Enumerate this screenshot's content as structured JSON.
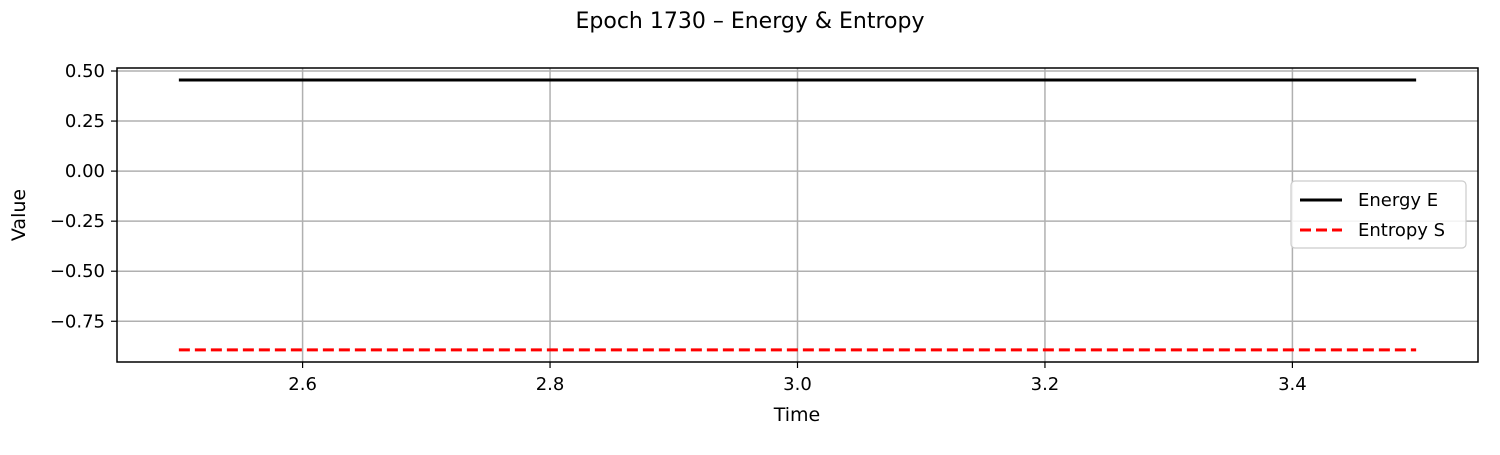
{
  "chart_data": {
    "type": "line",
    "title": "Epoch 1730 – Energy & Entropy",
    "xlabel": "Time",
    "ylabel": "Value",
    "xlim": [
      2.45,
      3.55
    ],
    "ylim": [
      -0.9535,
      0.515
    ],
    "x_ticks": [
      2.6,
      2.8,
      3.0,
      3.2,
      3.4
    ],
    "x_tick_labels": [
      "2.6",
      "2.8",
      "3.0",
      "3.2",
      "3.4"
    ],
    "y_ticks": [
      0.5,
      0.25,
      0.0,
      -0.25,
      -0.5,
      -0.75
    ],
    "y_tick_labels": [
      "0.50",
      "0.25",
      "0.00",
      "−0.25",
      "−0.50",
      "−0.75"
    ],
    "grid": true,
    "legend_position": "center-right",
    "series": [
      {
        "name": "Energy E",
        "x": [
          2.5,
          3.5
        ],
        "values": [
          0.455,
          0.455
        ],
        "color": "#000000",
        "style": "solid"
      },
      {
        "name": "Entropy S",
        "x": [
          2.5,
          3.5
        ],
        "values": [
          -0.893,
          -0.893
        ],
        "color": "#ff0000",
        "style": "dashed"
      }
    ]
  }
}
